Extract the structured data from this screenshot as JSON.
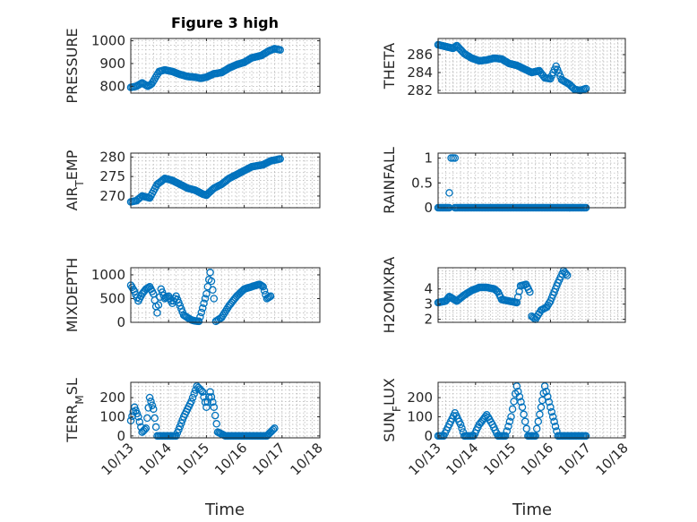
{
  "title": "Figure 3 high",
  "chart_data": [
    {
      "type": "scatter",
      "ylabel_main": "PRESSURE",
      "ylabel_sub": "",
      "ylabel_tail": "",
      "xlim": [
        13,
        18
      ],
      "ylim": [
        770,
        1010
      ],
      "yticks": [
        800,
        900,
        1000
      ],
      "xticks": [
        13,
        14,
        15,
        16,
        17,
        18
      ],
      "xticklabels": [
        "10/13",
        "10/14",
        "10/15",
        "10/16",
        "10/17",
        "10/18"
      ],
      "show_xticklabels": false,
      "series": [
        {
          "keypoints": [
            [
              13.0,
              795
            ],
            [
              13.15,
              800
            ],
            [
              13.3,
              815
            ],
            [
              13.45,
              800
            ],
            [
              13.55,
              810
            ],
            [
              13.75,
              865
            ],
            [
              13.9,
              872
            ],
            [
              14.1,
              865
            ],
            [
              14.3,
              852
            ],
            [
              14.5,
              843
            ],
            [
              14.7,
              840
            ],
            [
              14.85,
              835
            ],
            [
              15.0,
              840
            ],
            [
              15.2,
              855
            ],
            [
              15.4,
              860
            ],
            [
              15.6,
              880
            ],
            [
              15.8,
              895
            ],
            [
              16.0,
              905
            ],
            [
              16.2,
              925
            ],
            [
              16.45,
              935
            ],
            [
              16.65,
              955
            ],
            [
              16.8,
              965
            ],
            [
              16.95,
              960
            ]
          ]
        }
      ]
    },
    {
      "type": "scatter",
      "ylabel_main": "THETA",
      "ylabel_sub": "",
      "ylabel_tail": "",
      "xlim": [
        13,
        18
      ],
      "ylim": [
        281.7,
        287.8
      ],
      "yticks": [
        282,
        284,
        286
      ],
      "xticks": [
        13,
        14,
        15,
        16,
        17,
        18
      ],
      "xticklabels": [
        "10/13",
        "10/14",
        "10/15",
        "10/16",
        "10/17",
        "10/18"
      ],
      "show_xticklabels": false,
      "series": [
        {
          "keypoints": [
            [
              13.0,
              287.1
            ],
            [
              13.2,
              286.9
            ],
            [
              13.4,
              286.7
            ],
            [
              13.5,
              287.0
            ],
            [
              13.7,
              286.1
            ],
            [
              13.9,
              285.6
            ],
            [
              14.1,
              285.3
            ],
            [
              14.3,
              285.4
            ],
            [
              14.5,
              285.6
            ],
            [
              14.7,
              285.5
            ],
            [
              14.9,
              285.0
            ],
            [
              15.1,
              284.8
            ],
            [
              15.3,
              284.4
            ],
            [
              15.5,
              284.0
            ],
            [
              15.7,
              284.2
            ],
            [
              15.85,
              283.4
            ],
            [
              16.0,
              283.3
            ],
            [
              16.15,
              284.7
            ],
            [
              16.3,
              283.2
            ],
            [
              16.5,
              282.7
            ],
            [
              16.65,
              282.1
            ],
            [
              16.8,
              282.0
            ],
            [
              16.95,
              282.2
            ]
          ]
        }
      ]
    },
    {
      "type": "scatter",
      "ylabel_main": "AIR",
      "ylabel_sub": "T",
      "ylabel_tail": "EMP",
      "xlim": [
        13,
        18
      ],
      "ylim": [
        267,
        281
      ],
      "yticks": [
        270,
        275,
        280
      ],
      "xticks": [
        13,
        14,
        15,
        16,
        17,
        18
      ],
      "xticklabels": [
        "10/13",
        "10/14",
        "10/15",
        "10/16",
        "10/17",
        "10/18"
      ],
      "show_xticklabels": false,
      "series": [
        {
          "keypoints": [
            [
              13.0,
              268.5
            ],
            [
              13.15,
              268.8
            ],
            [
              13.3,
              270.0
            ],
            [
              13.5,
              269.5
            ],
            [
              13.7,
              273.0
            ],
            [
              13.9,
              274.5
            ],
            [
              14.1,
              274.0
            ],
            [
              14.3,
              273.0
            ],
            [
              14.5,
              272.0
            ],
            [
              14.7,
              271.5
            ],
            [
              14.9,
              270.5
            ],
            [
              15.0,
              270.2
            ],
            [
              15.2,
              272.0
            ],
            [
              15.4,
              273.0
            ],
            [
              15.6,
              274.5
            ],
            [
              15.8,
              275.5
            ],
            [
              16.0,
              276.5
            ],
            [
              16.2,
              277.5
            ],
            [
              16.5,
              278.0
            ],
            [
              16.7,
              279.0
            ],
            [
              16.95,
              279.5
            ]
          ]
        }
      ]
    },
    {
      "type": "scatter",
      "ylabel_main": "RAINFALL",
      "ylabel_sub": "",
      "ylabel_tail": "",
      "xlim": [
        13,
        18
      ],
      "ylim": [
        0,
        1.1
      ],
      "yticks": [
        0,
        0.5,
        1
      ],
      "xticks": [
        13,
        14,
        15,
        16,
        17,
        18
      ],
      "xticklabels": [
        "10/13",
        "10/14",
        "10/15",
        "10/16",
        "10/17",
        "10/18"
      ],
      "show_xticklabels": false,
      "series": [
        {
          "keypoints": [
            [
              13.0,
              0
            ],
            [
              13.3,
              0
            ]
          ],
          "extra_points": [
            [
              13.3,
              0.3
            ],
            [
              13.35,
              1.0
            ],
            [
              13.4,
              1.0
            ],
            [
              13.45,
              1.0
            ]
          ],
          "fill_to": [
            13.45,
            16.95,
            0
          ]
        }
      ]
    },
    {
      "type": "scatter",
      "ylabel_main": "MIXDEPTH",
      "ylabel_sub": "",
      "ylabel_tail": "",
      "xlim": [
        13,
        18
      ],
      "ylim": [
        0,
        1150
      ],
      "yticks": [
        0,
        500,
        1000
      ],
      "xticks": [
        13,
        14,
        15,
        16,
        17,
        18
      ],
      "xticklabels": [
        "10/13",
        "10/14",
        "10/15",
        "10/16",
        "10/17",
        "10/18"
      ],
      "show_xticklabels": false,
      "series": [
        {
          "keypoints": [
            [
              13.0,
              780
            ],
            [
              13.1,
              650
            ],
            [
              13.2,
              450
            ],
            [
              13.3,
              600
            ],
            [
              13.4,
              700
            ],
            [
              13.5,
              750
            ],
            [
              13.6,
              600
            ],
            [
              13.7,
              200
            ],
            [
              13.8,
              700
            ],
            [
              13.9,
              500
            ],
            [
              14.0,
              550
            ],
            [
              14.1,
              400
            ],
            [
              14.2,
              550
            ],
            [
              14.3,
              350
            ],
            [
              14.4,
              150
            ],
            [
              14.5,
              100
            ],
            [
              14.6,
              50
            ],
            [
              14.7,
              30
            ],
            [
              14.8,
              20
            ],
            [
              14.9,
              300
            ],
            [
              15.0,
              600
            ],
            [
              15.1,
              1050
            ],
            [
              15.2,
              500
            ],
            [
              15.25,
              20
            ],
            [
              15.4,
              100
            ],
            [
              15.6,
              350
            ],
            [
              15.8,
              550
            ],
            [
              16.0,
              700
            ],
            [
              16.2,
              750
            ],
            [
              16.4,
              800
            ],
            [
              16.5,
              750
            ],
            [
              16.6,
              500
            ],
            [
              16.7,
              550
            ]
          ]
        }
      ]
    },
    {
      "type": "scatter",
      "ylabel_main": "H2OMIXRA",
      "ylabel_sub": "",
      "ylabel_tail": "",
      "xlim": [
        13,
        18
      ],
      "ylim": [
        1.8,
        5.4
      ],
      "yticks": [
        2,
        3,
        4
      ],
      "xticks": [
        13,
        14,
        15,
        16,
        17,
        18
      ],
      "xticklabels": [
        "10/13",
        "10/14",
        "10/15",
        "10/16",
        "10/17",
        "10/18"
      ],
      "show_xticklabels": false,
      "series": [
        {
          "keypoints": [
            [
              13.0,
              3.1
            ],
            [
              13.2,
              3.2
            ],
            [
              13.3,
              3.5
            ],
            [
              13.5,
              3.2
            ],
            [
              13.7,
              3.6
            ],
            [
              13.9,
              3.9
            ],
            [
              14.1,
              4.1
            ],
            [
              14.3,
              4.1
            ],
            [
              14.5,
              4.0
            ],
            [
              14.6,
              3.8
            ],
            [
              14.7,
              3.3
            ],
            [
              14.9,
              3.2
            ],
            [
              15.1,
              3.1
            ],
            [
              15.2,
              4.2
            ],
            [
              15.35,
              4.3
            ],
            [
              15.45,
              3.8
            ],
            [
              15.5,
              2.2
            ],
            [
              15.6,
              2.0
            ],
            [
              15.75,
              2.6
            ],
            [
              15.9,
              2.8
            ],
            [
              16.0,
              3.2
            ],
            [
              16.2,
              4.4
            ],
            [
              16.35,
              5.2
            ],
            [
              16.45,
              4.9
            ]
          ]
        }
      ]
    },
    {
      "type": "scatter",
      "ylabel_main": "TERR",
      "ylabel_sub": "M",
      "ylabel_tail": "SL",
      "xlim": [
        13,
        18
      ],
      "ylim": [
        -10,
        280
      ],
      "yticks": [
        0,
        100,
        200
      ],
      "xticks": [
        13,
        14,
        15,
        16,
        17,
        18
      ],
      "xticklabels": [
        "10/13",
        "10/14",
        "10/15",
        "10/16",
        "10/17",
        "10/18"
      ],
      "show_xticklabels": true,
      "series": [
        {
          "keypoints": [
            [
              13.0,
              80
            ],
            [
              13.1,
              150
            ],
            [
              13.2,
              100
            ],
            [
              13.3,
              20
            ],
            [
              13.4,
              40
            ],
            [
              13.5,
              200
            ],
            [
              13.6,
              140
            ],
            [
              13.7,
              0
            ],
            [
              14.2,
              0
            ],
            [
              14.4,
              100
            ],
            [
              14.6,
              180
            ],
            [
              14.75,
              260
            ],
            [
              14.9,
              230
            ],
            [
              15.0,
              150
            ],
            [
              15.1,
              230
            ],
            [
              15.2,
              150
            ],
            [
              15.3,
              20
            ],
            [
              15.5,
              0
            ],
            [
              16.6,
              0
            ],
            [
              16.7,
              20
            ],
            [
              16.8,
              40
            ]
          ]
        }
      ]
    },
    {
      "type": "scatter",
      "ylabel_main": "SUN",
      "ylabel_sub": "F",
      "ylabel_tail": "LUX",
      "xlim": [
        13,
        18
      ],
      "ylim": [
        -10,
        280
      ],
      "yticks": [
        0,
        100,
        200
      ],
      "xticks": [
        13,
        14,
        15,
        16,
        17,
        18
      ],
      "xticklabels": [
        "10/13",
        "10/14",
        "10/15",
        "10/16",
        "10/17",
        "10/18"
      ],
      "show_xticklabels": true,
      "series": [
        {
          "keypoints": [
            [
              13.0,
              0
            ],
            [
              13.15,
              0
            ],
            [
              13.3,
              60
            ],
            [
              13.45,
              120
            ],
            [
              13.6,
              60
            ],
            [
              13.7,
              0
            ],
            [
              13.95,
              0
            ],
            [
              14.1,
              60
            ],
            [
              14.3,
              110
            ],
            [
              14.45,
              60
            ],
            [
              14.6,
              0
            ],
            [
              14.8,
              0
            ],
            [
              14.95,
              100
            ],
            [
              15.1,
              260
            ],
            [
              15.25,
              150
            ],
            [
              15.4,
              0
            ],
            [
              15.6,
              0
            ],
            [
              15.75,
              150
            ],
            [
              15.85,
              260
            ],
            [
              16.0,
              150
            ],
            [
              16.2,
              0
            ],
            [
              16.95,
              0
            ]
          ]
        }
      ]
    }
  ],
  "xlabel_left": "Time",
  "xlabel_right": "Time"
}
